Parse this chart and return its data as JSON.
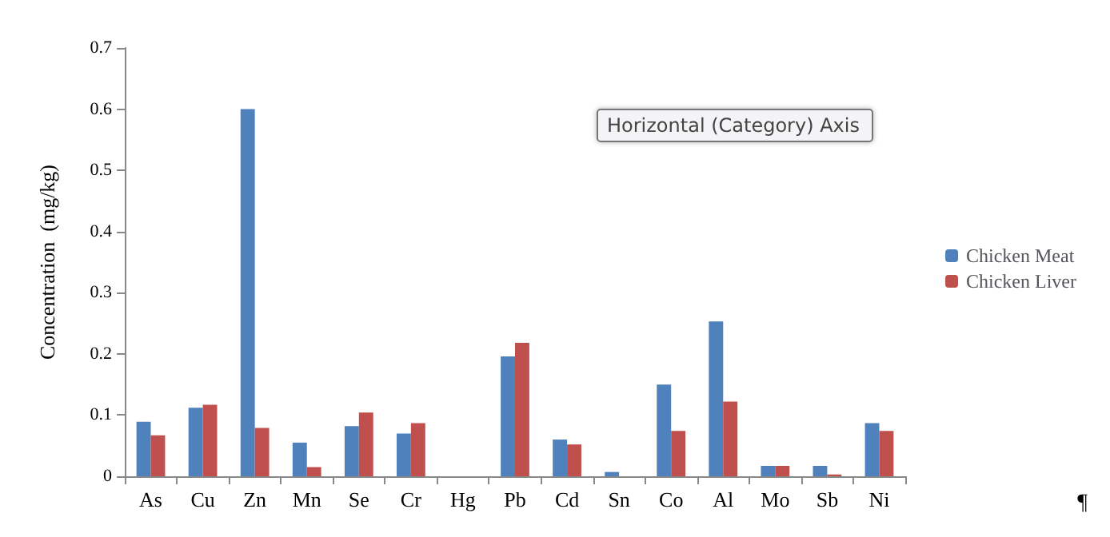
{
  "chart_data": {
    "type": "bar",
    "ylabel": "Concentration  (mg/kg)",
    "categories": [
      "As",
      "Cu",
      "Zn",
      "Mn",
      "Se",
      "Cr",
      "Hg",
      "Pb",
      "Cd",
      "Sn",
      "Co",
      "Al",
      "Mo",
      "Sb",
      "Ni"
    ],
    "series": [
      {
        "name": "Chicken Meat",
        "color": "#4f81bd",
        "values": [
          0.089,
          0.112,
          0.6,
          0.055,
          0.082,
          0.07,
          0,
          0.196,
          0.06,
          0.007,
          0.15,
          0.253,
          0.017,
          0.017,
          0.087
        ]
      },
      {
        "name": "Chicken Liver",
        "color": "#c0504d",
        "values": [
          0.067,
          0.117,
          0.079,
          0.015,
          0.104,
          0.087,
          0,
          0.218,
          0.052,
          0,
          0.074,
          0.122,
          0.017,
          0.003,
          0.074
        ]
      }
    ],
    "ylim": [
      0,
      0.7
    ],
    "yticks": [
      0,
      0.1,
      0.2,
      0.3,
      0.4,
      0.5,
      0.6,
      0.7
    ],
    "grid": false,
    "legend": "right",
    "annotations": [
      "Horizontal (Category) Axis",
      "¶"
    ]
  }
}
